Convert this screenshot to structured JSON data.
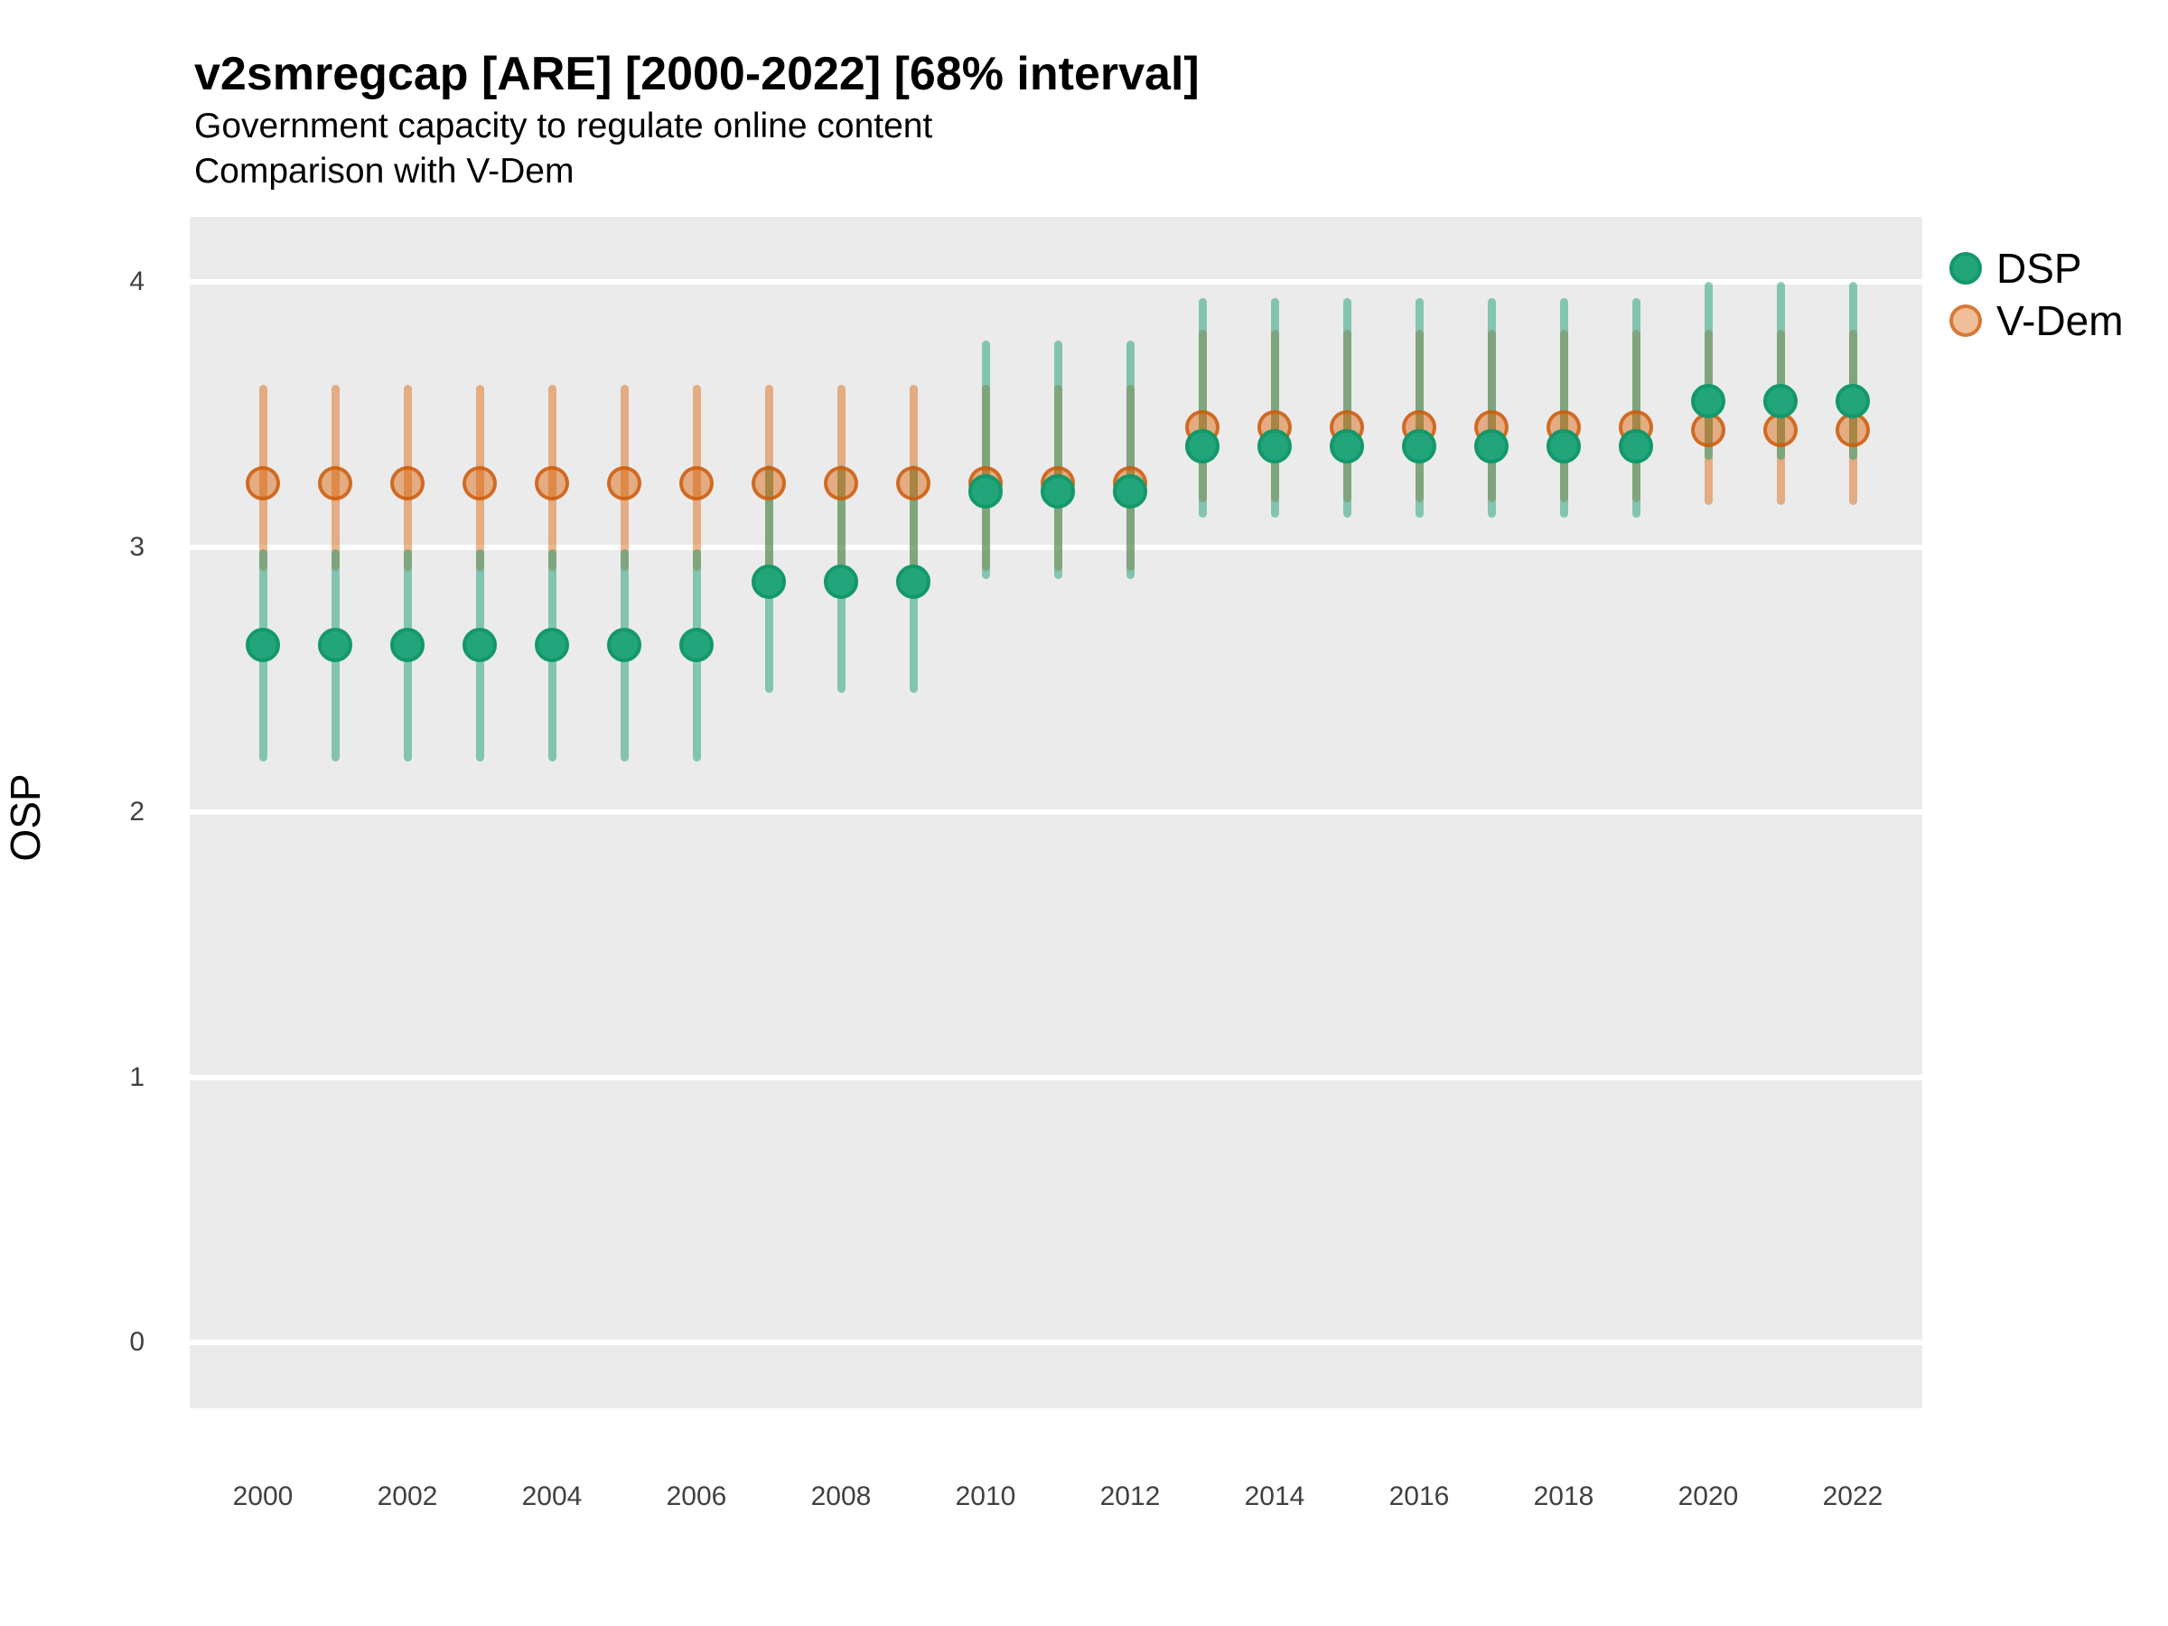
{
  "header": {
    "title": "v2smregcap [ARE] [2000-2022] [68% interval]",
    "subtitle1": "Government capacity to regulate online content",
    "subtitle2": "Comparison with V-Dem"
  },
  "axes": {
    "y_label": "OSP",
    "y_ticks": [
      "0",
      "1",
      "2",
      "3",
      "4"
    ],
    "x_ticks": [
      "2000",
      "2002",
      "2004",
      "2006",
      "2008",
      "2010",
      "2012",
      "2014",
      "2016",
      "2018",
      "2020",
      "2022"
    ]
  },
  "legend": {
    "items": [
      {
        "label": "DSP",
        "series": "dsp"
      },
      {
        "label": "V-Dem",
        "series": "vdem"
      }
    ]
  },
  "colors": {
    "panel_background": "#ebebeb",
    "gridline": "#ffffff",
    "dsp_point_fill": "#23a57b",
    "dsp_point_stroke": "#13986a",
    "dsp_line": "rgba(27,158,119,0.50)",
    "vdem_base": "#d95f02",
    "vdem_line": "rgba(217,95,2,0.45)",
    "overlap_blend": "#85a57d"
  },
  "chart_data": {
    "type": "pointrange",
    "title": "v2smregcap [ARE] [2000-2022] [68% interval]",
    "subtitle": [
      "Government capacity to regulate online content",
      "Comparison with V-Dem"
    ],
    "interval": "68%",
    "xlabel": "",
    "ylabel": "OSP",
    "ylim": [
      -0.25,
      4.25
    ],
    "xlim": [
      1999,
      2023
    ],
    "grid": "major-horizontal-white-on-gray",
    "legend_position": "right-top",
    "x": [
      2000,
      2001,
      2002,
      2003,
      2004,
      2005,
      2006,
      2007,
      2008,
      2009,
      2010,
      2011,
      2012,
      2013,
      2014,
      2015,
      2016,
      2017,
      2018,
      2019,
      2020,
      2021,
      2022
    ],
    "series": [
      {
        "name": "DSP",
        "key": "dsp",
        "est": [
          2.63,
          2.63,
          2.63,
          2.63,
          2.63,
          2.63,
          2.63,
          2.87,
          2.87,
          2.87,
          3.21,
          3.21,
          3.21,
          3.38,
          3.38,
          3.38,
          3.38,
          3.38,
          3.38,
          3.38,
          3.55,
          3.55,
          3.55
        ],
        "lo": [
          2.19,
          2.19,
          2.19,
          2.19,
          2.19,
          2.19,
          2.19,
          2.45,
          2.45,
          2.45,
          2.88,
          2.88,
          2.88,
          3.11,
          3.11,
          3.11,
          3.11,
          3.11,
          3.11,
          3.11,
          3.33,
          3.33,
          3.33
        ],
        "hi": [
          2.99,
          2.99,
          2.99,
          2.99,
          2.99,
          2.99,
          2.99,
          3.31,
          3.31,
          3.31,
          3.78,
          3.78,
          3.78,
          3.94,
          3.94,
          3.94,
          3.94,
          3.94,
          3.94,
          3.94,
          4.0,
          4.0,
          4.0
        ]
      },
      {
        "name": "V-Dem",
        "key": "vdem",
        "est": [
          3.24,
          3.24,
          3.24,
          3.24,
          3.24,
          3.24,
          3.24,
          3.24,
          3.24,
          3.24,
          3.24,
          3.24,
          3.24,
          3.45,
          3.45,
          3.45,
          3.45,
          3.45,
          3.45,
          3.45,
          3.44,
          3.44,
          3.44
        ],
        "lo": [
          2.91,
          2.91,
          2.91,
          2.91,
          2.91,
          2.91,
          2.91,
          2.91,
          2.91,
          2.91,
          2.91,
          2.91,
          2.91,
          3.17,
          3.17,
          3.17,
          3.17,
          3.17,
          3.17,
          3.17,
          3.16,
          3.16,
          3.16
        ],
        "hi": [
          3.61,
          3.61,
          3.61,
          3.61,
          3.61,
          3.61,
          3.61,
          3.61,
          3.61,
          3.61,
          3.61,
          3.61,
          3.61,
          3.82,
          3.82,
          3.82,
          3.82,
          3.82,
          3.82,
          3.82,
          3.82,
          3.82,
          3.82
        ]
      }
    ]
  }
}
